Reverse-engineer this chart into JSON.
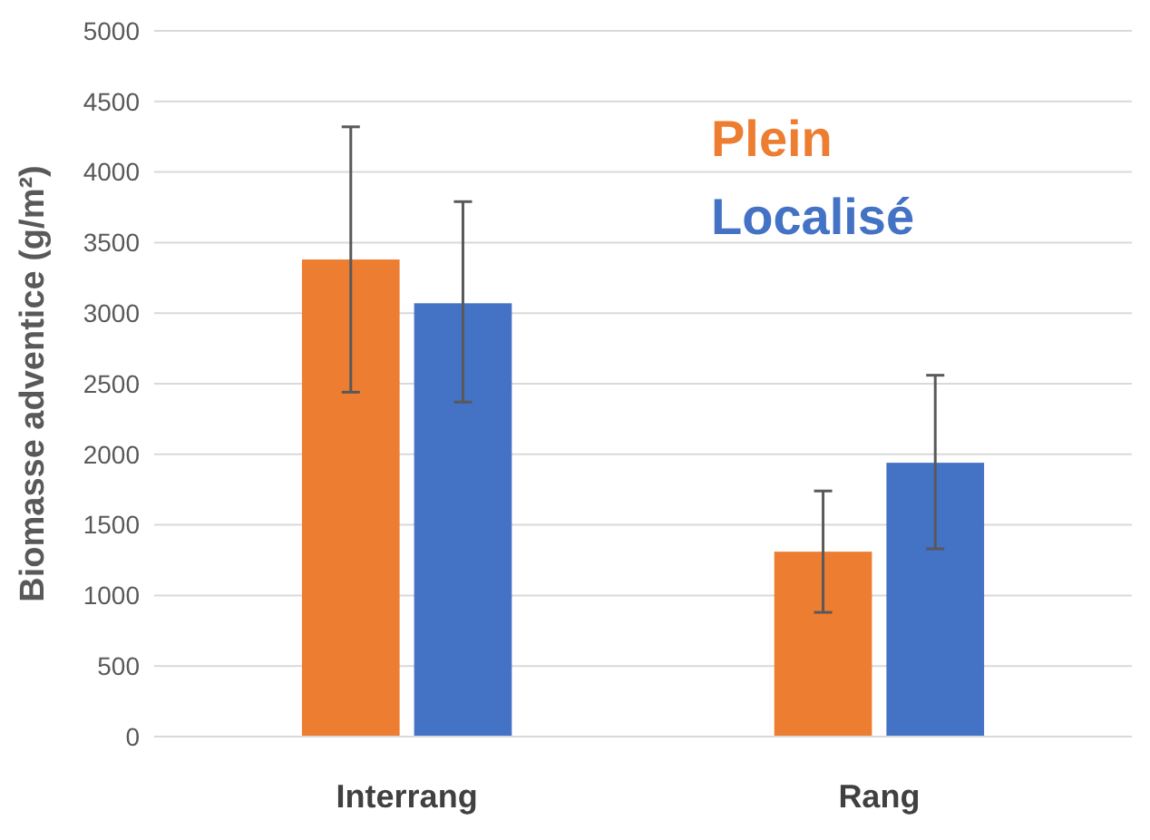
{
  "chart_data": {
    "type": "bar",
    "ylabel": "Biomasse adventice (g/m²)",
    "categories": [
      "Interrang",
      "Rang"
    ],
    "series": [
      {
        "name": "Plein",
        "color": "#ed7d31",
        "values": [
          3380,
          1310
        ],
        "errors": [
          [
            2440,
            4320
          ],
          [
            880,
            1740
          ]
        ]
      },
      {
        "name": "Localisé",
        "color": "#4472c4",
        "values": [
          3070,
          1940
        ],
        "errors": [
          [
            2370,
            3790
          ],
          [
            1330,
            2560
          ]
        ]
      }
    ],
    "ylim": [
      0,
      5000
    ],
    "yticks": [
      0,
      500,
      1000,
      1500,
      2000,
      2500,
      3000,
      3500,
      4000,
      4500,
      5000
    ],
    "grid": "y",
    "legend": "top right"
  }
}
